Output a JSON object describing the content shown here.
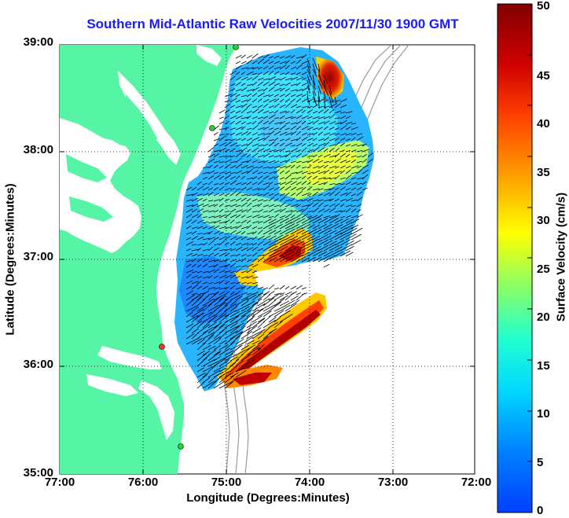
{
  "title": "Southern Mid-Atlantic Raw Velocities 2007/11/30 1900 GMT",
  "axes": {
    "x_label": "Longitude (Degrees:Minutes)",
    "y_label": "Latitude (Degrees:Minutes)",
    "x_ticks": [
      "77:00",
      "76:00",
      "75:00",
      "74:00",
      "73:00",
      "72:00"
    ],
    "y_ticks": [
      "39:00",
      "38:00",
      "37:00",
      "36:00",
      "35:00"
    ],
    "x_range": [
      -77,
      -72
    ],
    "y_range": [
      35,
      39
    ]
  },
  "colorbar": {
    "label": "Surface Velocity (cm/s)",
    "range": [
      0,
      50
    ],
    "ticks": [
      "0",
      "5",
      "10",
      "15",
      "20",
      "25",
      "30",
      "35",
      "40",
      "45",
      "50"
    ]
  },
  "colors": {
    "land": "#55f5a5",
    "title": "#1a1aff",
    "bathymetry": "#9a9a9a"
  }
}
